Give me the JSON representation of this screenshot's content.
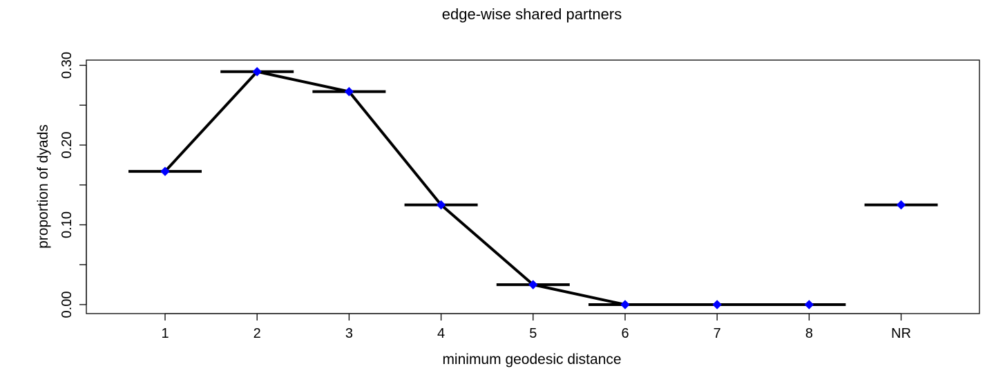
{
  "chart_data": {
    "type": "line",
    "title": "edge-wise shared partners",
    "xlabel": "minimum geodesic distance",
    "ylabel": "proportion of dyads",
    "categories": [
      "1",
      "2",
      "3",
      "4",
      "5",
      "6",
      "7",
      "8",
      "NR"
    ],
    "ylim": [
      0,
      0.3
    ],
    "y_ticks": [
      "0.00",
      "0.10",
      "0.20",
      "0.30"
    ],
    "series": [
      {
        "values": [
          0.167,
          0.292,
          0.267,
          0.125,
          0.025,
          0.0,
          0.0,
          0.0,
          0.125
        ],
        "observed": [
          0.167,
          0.292,
          0.267,
          0.125,
          0.025,
          0.0,
          0.0,
          0.0,
          0.125
        ]
      }
    ],
    "connected_categories": [
      "1",
      "2",
      "3",
      "4",
      "5",
      "6",
      "7",
      "8"
    ],
    "grid": false,
    "colors": {
      "line": "#000000",
      "marker": "#0000ff",
      "axis": "#000000"
    }
  }
}
